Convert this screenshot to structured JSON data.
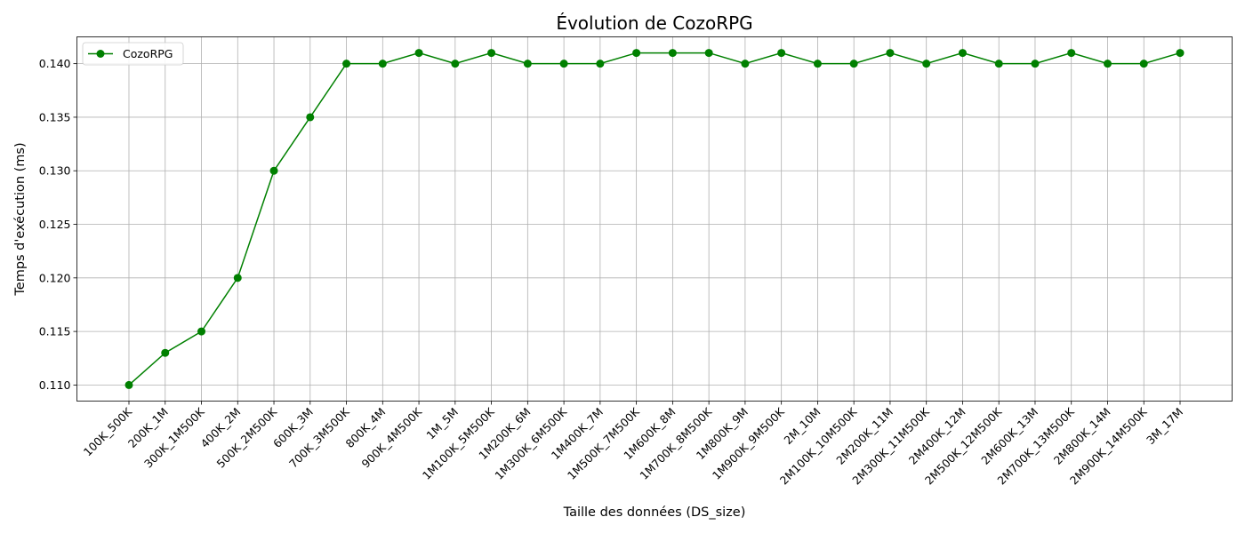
{
  "chart_data": {
    "type": "line",
    "title": "Évolution de CozoRPG",
    "xlabel": "Taille des données (DS_size)",
    "ylabel": "Temps d'exécution (ms)",
    "categories": [
      "100K_500K",
      "200K_1M",
      "300K_1M500K",
      "400K_2M",
      "500K_2M500K",
      "600K_3M",
      "700K_3M500K",
      "800K_4M",
      "900K_4M500K",
      "1M_5M",
      "1M100K_5M500K",
      "1M200K_6M",
      "1M300K_6M500K",
      "1M400K_7M",
      "1M500K_7M500K",
      "1M600K_8M",
      "1M700K_8M500K",
      "1M800K_9M",
      "1M900K_9M500K",
      "2M_10M",
      "2M100K_10M500K",
      "2M200K_11M",
      "2M300K_11M500K",
      "2M400K_12M",
      "2M500K_12M500K",
      "2M600K_13M",
      "2M700K_13M500K",
      "2M800K_14M",
      "2M900K_14M500K",
      "3M_17M"
    ],
    "series": [
      {
        "name": "CozoRPG",
        "color": "#008000",
        "values": [
          0.11,
          0.113,
          0.115,
          0.12,
          0.13,
          0.135,
          0.14,
          0.14,
          0.141,
          0.14,
          0.141,
          0.14,
          0.14,
          0.14,
          0.141,
          0.141,
          0.141,
          0.14,
          0.141,
          0.14,
          0.14,
          0.141,
          0.14,
          0.141,
          0.14,
          0.14,
          0.141,
          0.14,
          0.14,
          0.141
        ]
      }
    ],
    "ylim": [
      0.1085,
      0.1425
    ],
    "yticks": [
      "0.110",
      "0.115",
      "0.120",
      "0.125",
      "0.130",
      "0.135",
      "0.140"
    ],
    "grid": true,
    "legend": "top-left"
  }
}
